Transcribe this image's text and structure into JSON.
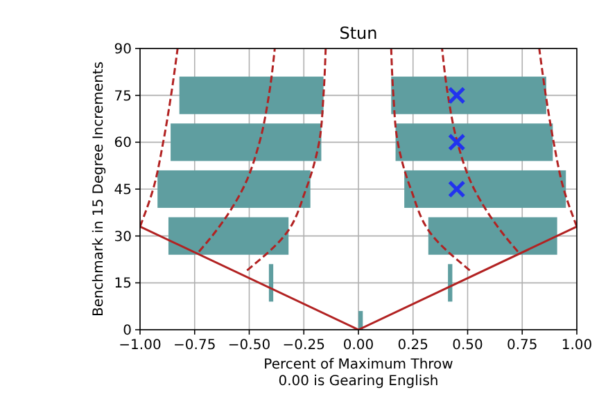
{
  "chart_data": {
    "type": "bar",
    "title": "Stun",
    "xlabel": "Percent of Maximum Throw\n0.00 is Gearing English",
    "ylabel": "Benchmark in 15 Degree Increments",
    "orientation": "horizontal",
    "grid": true,
    "xlim": [
      -1,
      1
    ],
    "xticks": [
      {
        "value": -1,
        "label": "−1.00"
      },
      {
        "value": -0.75,
        "label": "−0.75"
      },
      {
        "value": -0.5,
        "label": "−0.50"
      },
      {
        "value": -0.25,
        "label": "−0.25"
      },
      {
        "value": 0,
        "label": "0.00"
      },
      {
        "value": 0.25,
        "label": "0.25"
      },
      {
        "value": 0.5,
        "label": "0.50"
      },
      {
        "value": 0.75,
        "label": "0.75"
      },
      {
        "value": 1,
        "label": "1.00"
      }
    ],
    "ylim": [
      0,
      90
    ],
    "yticks": [
      0,
      15,
      30,
      45,
      60,
      75,
      90
    ],
    "series": [
      {
        "color": "#5f9ea0",
        "x": [
          15,
          30,
          45,
          60,
          75
        ],
        "base": [
          -0.41,
          -0.87,
          -0.92,
          -0.86,
          -0.82
        ],
        "values": [
          0.02,
          0.55,
          0.7,
          0.69,
          0.66
        ]
      },
      {
        "color": "#5f9ea0",
        "x": [
          0,
          15,
          30,
          45,
          60,
          75
        ],
        "base": [
          0,
          0.41,
          0.32,
          0.21,
          0.17,
          0.15
        ],
        "values": [
          0.02,
          0.02,
          0.59,
          0.74,
          0.72,
          0.71
        ]
      },
      {
        "type": "line",
        "color": "#b22222",
        "line_style": "solid",
        "x": [
          33,
          0,
          33
        ],
        "values": [
          -1,
          0,
          1
        ]
      },
      {
        "type": "line",
        "color": "#b22222",
        "line_style": "dashed",
        "x": [
          33,
          45,
          60,
          75,
          90
        ],
        "values": [
          -1,
          -0.94,
          -0.894,
          -0.858,
          -0.828
        ]
      },
      {
        "type": "line",
        "color": "#b22222",
        "line_style": "dashed",
        "x": [
          25,
          30,
          45,
          60,
          75,
          90
        ],
        "values": [
          -0.73,
          -0.67,
          -0.53,
          -0.453,
          -0.41,
          -0.383
        ]
      },
      {
        "type": "line",
        "color": "#b22222",
        "line_style": "dashed",
        "x": [
          19,
          30,
          45,
          60,
          75,
          90
        ],
        "values": [
          -0.51,
          -0.34,
          -0.24,
          -0.18,
          -0.16,
          -0.15
        ]
      },
      {
        "type": "line",
        "color": "#b22222",
        "line_style": "dashed",
        "x": [
          33,
          45,
          60,
          75,
          90
        ],
        "values": [
          1,
          0.94,
          0.894,
          0.858,
          0.828
        ]
      },
      {
        "type": "line",
        "color": "#b22222",
        "line_style": "dashed",
        "x": [
          25,
          30,
          45,
          60,
          75,
          90
        ],
        "values": [
          0.73,
          0.67,
          0.53,
          0.453,
          0.41,
          0.383
        ]
      },
      {
        "type": "line",
        "color": "#b22222",
        "line_style": "dashed",
        "x": [
          19,
          30,
          45,
          60,
          75,
          90
        ],
        "values": [
          0.51,
          0.34,
          0.24,
          0.18,
          0.16,
          0.15
        ]
      },
      {
        "type": "scatter",
        "color": "#2233ee",
        "marker": "cross",
        "x": [
          45,
          60,
          75
        ],
        "values": [
          0.45,
          0.45,
          0.45
        ]
      }
    ]
  }
}
